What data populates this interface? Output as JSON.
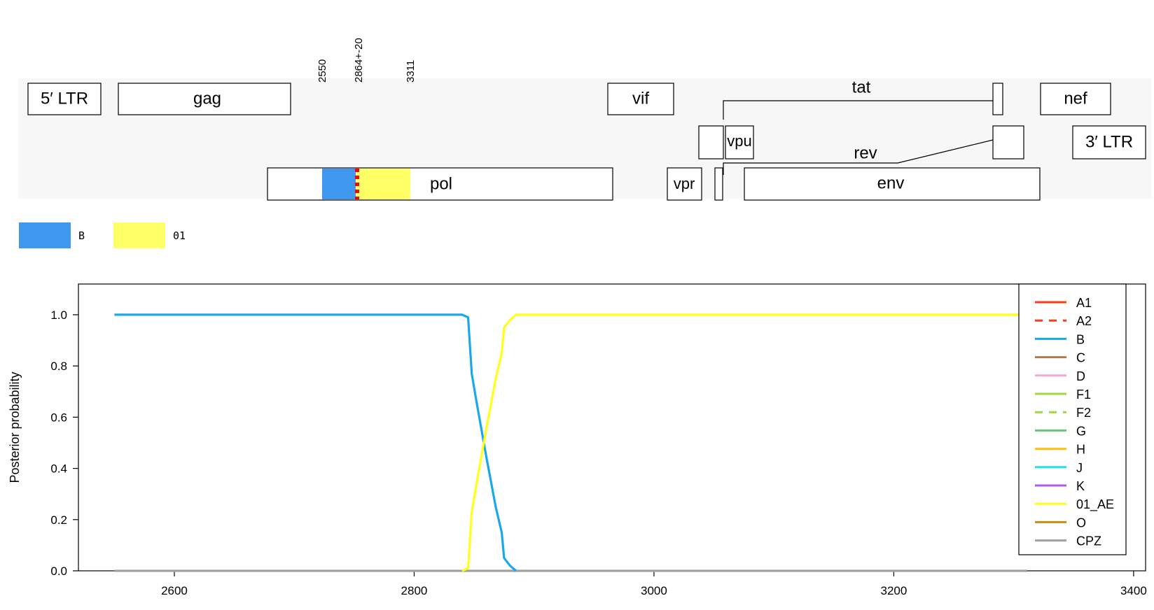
{
  "genome_map": {
    "genes": [
      {
        "id": "ltr5",
        "label": "5′ LTR"
      },
      {
        "id": "gag",
        "label": "gag"
      },
      {
        "id": "vif",
        "label": "vif"
      },
      {
        "id": "tat",
        "label": "tat"
      },
      {
        "id": "nef",
        "label": "nef"
      },
      {
        "id": "vpu",
        "label": "vpu"
      },
      {
        "id": "ltr3",
        "label": "3′ LTR"
      },
      {
        "id": "rev",
        "label": "rev"
      },
      {
        "id": "pol",
        "label": "pol"
      },
      {
        "id": "vpr",
        "label": "vpr"
      },
      {
        "id": "env",
        "label": "env"
      }
    ],
    "breakpoints": [
      "2550",
      "2864+-20",
      "3311"
    ],
    "segment_colors": {
      "B": "#3f97ef",
      "01": "#ffff66",
      "breakpoint": "#ff0000"
    },
    "subtype_legend": [
      {
        "label": "B",
        "color": "#3f97ef"
      },
      {
        "label": "01",
        "color": "#ffff66"
      }
    ]
  },
  "chart_data": {
    "type": "line",
    "title": "",
    "xlabel": "",
    "ylabel": "Posterior probability",
    "xlim": [
      2520,
      3410
    ],
    "ylim": [
      0,
      1.12
    ],
    "xticks": [
      2600,
      2800,
      3000,
      3200,
      3400
    ],
    "yticks": [
      0.0,
      0.2,
      0.4,
      0.6,
      0.8,
      1.0
    ],
    "ytick_labels": [
      "0.0",
      "0.2",
      "0.4",
      "0.6",
      "0.8",
      "1.0"
    ],
    "legend_position": "top-right",
    "legend": [
      {
        "name": "A1",
        "color": "#ff3b1f",
        "dash": false
      },
      {
        "name": "A2",
        "color": "#ff3b1f",
        "dash": true
      },
      {
        "name": "B",
        "color": "#1aa7ec",
        "dash": false
      },
      {
        "name": "C",
        "color": "#b07a50",
        "dash": false
      },
      {
        "name": "D",
        "color": "#f7a8d0",
        "dash": false
      },
      {
        "name": "F1",
        "color": "#a5d63a",
        "dash": false
      },
      {
        "name": "F2",
        "color": "#a5d63a",
        "dash": true
      },
      {
        "name": "G",
        "color": "#6cc07a",
        "dash": false
      },
      {
        "name": "H",
        "color": "#ffc10e",
        "dash": false
      },
      {
        "name": "J",
        "color": "#22e0e8",
        "dash": false
      },
      {
        "name": "K",
        "color": "#b05ce6",
        "dash": false
      },
      {
        "name": "01_AE",
        "color": "#ffff1a",
        "dash": false
      },
      {
        "name": "O",
        "color": "#cc8a14",
        "dash": false
      },
      {
        "name": "CPZ",
        "color": "#a0a0a0",
        "dash": false
      }
    ],
    "series": [
      {
        "name": "CPZ",
        "color": "#a0a0a0",
        "x": [
          2550,
          3311
        ],
        "y": [
          0.0,
          0.0
        ]
      },
      {
        "name": "B",
        "color": "#1aa7ec",
        "x": [
          2550,
          2840,
          2845,
          2848,
          2852,
          2860,
          2868,
          2873,
          2875,
          2880,
          2885
        ],
        "y": [
          1.0,
          1.0,
          0.99,
          0.77,
          0.66,
          0.45,
          0.25,
          0.15,
          0.05,
          0.02,
          0.0
        ]
      },
      {
        "name": "01_AE",
        "color": "#ffff1a",
        "x": [
          2840,
          2845,
          2848,
          2852,
          2860,
          2868,
          2873,
          2875,
          2880,
          2885,
          3311
        ],
        "y": [
          0.0,
          0.01,
          0.23,
          0.34,
          0.55,
          0.75,
          0.85,
          0.95,
          0.98,
          1.0,
          1.0
        ]
      }
    ]
  }
}
